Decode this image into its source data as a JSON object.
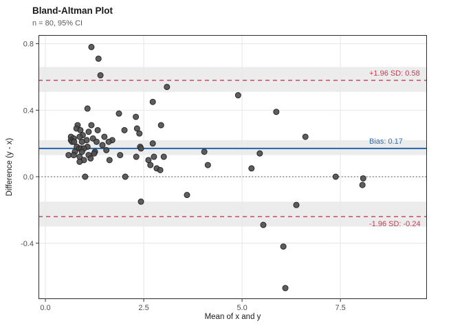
{
  "header": {
    "title": "Bland-Altman Plot",
    "subtitle": "n = 80, 95% CI"
  },
  "chart_data": {
    "type": "scatter",
    "title": "Bland-Altman Plot",
    "subtitle": "n = 80, 95% CI",
    "xlabel": "Mean of x and y",
    "ylabel": "Difference (y - x)",
    "xlim": [
      -0.175,
      9.7
    ],
    "ylim": [
      -0.736,
      0.852
    ],
    "x_ticks": [
      0.0,
      2.5,
      5.0,
      7.5
    ],
    "x_tick_labels": [
      "0.0",
      "2.5",
      "5.0",
      "7.5"
    ],
    "y_ticks": [
      0.8,
      0.4,
      0.0,
      -0.4
    ],
    "y_tick_labels": [
      "0.8",
      "0.4",
      "0.0",
      "-0.4"
    ],
    "grid": true,
    "legend": "none",
    "colors": {
      "point": "#4d4d4d",
      "point_stroke": "#262626",
      "bias_line": "#2d6cb0",
      "loa_line": "#c13b52",
      "zero_line": "#555555",
      "ci_band": "#ececec",
      "gridline": "#e9e9e9",
      "panel_border": "#2b2b2b",
      "tick_text": "#4d4d4d"
    },
    "reference_lines": [
      {
        "name": "upper_loa",
        "value": 0.58,
        "label": "+1.96 SD: 0.58",
        "style": "dashed",
        "color": "#c13b52",
        "ci": [
          0.51,
          0.66
        ],
        "label_position": "above"
      },
      {
        "name": "bias",
        "value": 0.17,
        "label": "Bias: 0.17",
        "style": "solid",
        "color": "#2d6cb0",
        "ci": [
          0.13,
          0.22
        ],
        "label_position": "above"
      },
      {
        "name": "zero",
        "value": 0.0,
        "label": "",
        "style": "dotted",
        "color": "#555555",
        "ci": null,
        "label_position": "none"
      },
      {
        "name": "lower_loa",
        "value": -0.24,
        "label": "-1.96 SD: -0.24",
        "style": "dashed",
        "color": "#c13b52",
        "ci": [
          -0.3,
          -0.15
        ],
        "label_position": "below"
      }
    ],
    "points": [
      [
        1.17,
        0.78
      ],
      [
        1.35,
        0.71
      ],
      [
        1.4,
        0.61
      ],
      [
        3.09,
        0.54
      ],
      [
        4.9,
        0.49
      ],
      [
        2.73,
        0.45
      ],
      [
        1.07,
        0.41
      ],
      [
        5.87,
        0.39
      ],
      [
        1.87,
        0.38
      ],
      [
        2.3,
        0.36
      ],
      [
        2.94,
        0.31
      ],
      [
        0.82,
        0.31
      ],
      [
        1.17,
        0.31
      ],
      [
        0.79,
        0.29
      ],
      [
        0.89,
        0.28
      ],
      [
        1.33,
        0.28
      ],
      [
        2.01,
        0.28
      ],
      [
        2.33,
        0.29
      ],
      [
        1.1,
        0.27
      ],
      [
        2.39,
        0.26
      ],
      [
        0.95,
        0.25
      ],
      [
        0.87,
        0.24
      ],
      [
        0.65,
        0.24
      ],
      [
        1.5,
        0.24
      ],
      [
        6.61,
        0.24
      ],
      [
        0.72,
        0.23
      ],
      [
        1.21,
        0.23
      ],
      [
        0.65,
        0.22
      ],
      [
        1.05,
        0.22
      ],
      [
        1.7,
        0.22
      ],
      [
        0.68,
        0.21
      ],
      [
        0.73,
        0.21
      ],
      [
        0.93,
        0.21
      ],
      [
        1.61,
        0.21
      ],
      [
        1.3,
        0.21
      ],
      [
        2.73,
        0.2
      ],
      [
        0.8,
        0.18
      ],
      [
        1.07,
        0.18
      ],
      [
        2.41,
        0.18
      ],
      [
        0.86,
        0.17
      ],
      [
        0.91,
        0.17
      ],
      [
        0.98,
        0.17
      ],
      [
        2.43,
        0.17
      ],
      [
        1.45,
        0.19
      ],
      [
        1.55,
        0.16
      ],
      [
        0.93,
        0.15
      ],
      [
        1.26,
        0.15
      ],
      [
        4.04,
        0.15
      ],
      [
        0.75,
        0.15
      ],
      [
        5.45,
        0.14
      ],
      [
        1.24,
        0.14
      ],
      [
        0.59,
        0.13
      ],
      [
        0.72,
        0.13
      ],
      [
        1.1,
        0.13
      ],
      [
        1.9,
        0.13
      ],
      [
        0.87,
        0.12
      ],
      [
        2.31,
        0.12
      ],
      [
        2.76,
        0.12
      ],
      [
        3.01,
        0.12
      ],
      [
        0.98,
        0.1
      ],
      [
        1.15,
        0.11
      ],
      [
        1.63,
        0.1
      ],
      [
        2.62,
        0.1
      ],
      [
        0.87,
        0.09
      ],
      [
        2.67,
        0.07
      ],
      [
        4.13,
        0.07
      ],
      [
        2.83,
        0.05
      ],
      [
        5.24,
        0.05
      ],
      [
        2.92,
        0.04
      ],
      [
        1.01,
        0.0
      ],
      [
        2.03,
        0.0
      ],
      [
        7.38,
        0.0
      ],
      [
        8.08,
        -0.01
      ],
      [
        8.06,
        -0.05
      ],
      [
        3.6,
        -0.11
      ],
      [
        2.43,
        -0.15
      ],
      [
        6.38,
        -0.17
      ],
      [
        5.54,
        -0.29
      ],
      [
        6.05,
        -0.42
      ],
      [
        6.1,
        -0.67
      ]
    ]
  }
}
